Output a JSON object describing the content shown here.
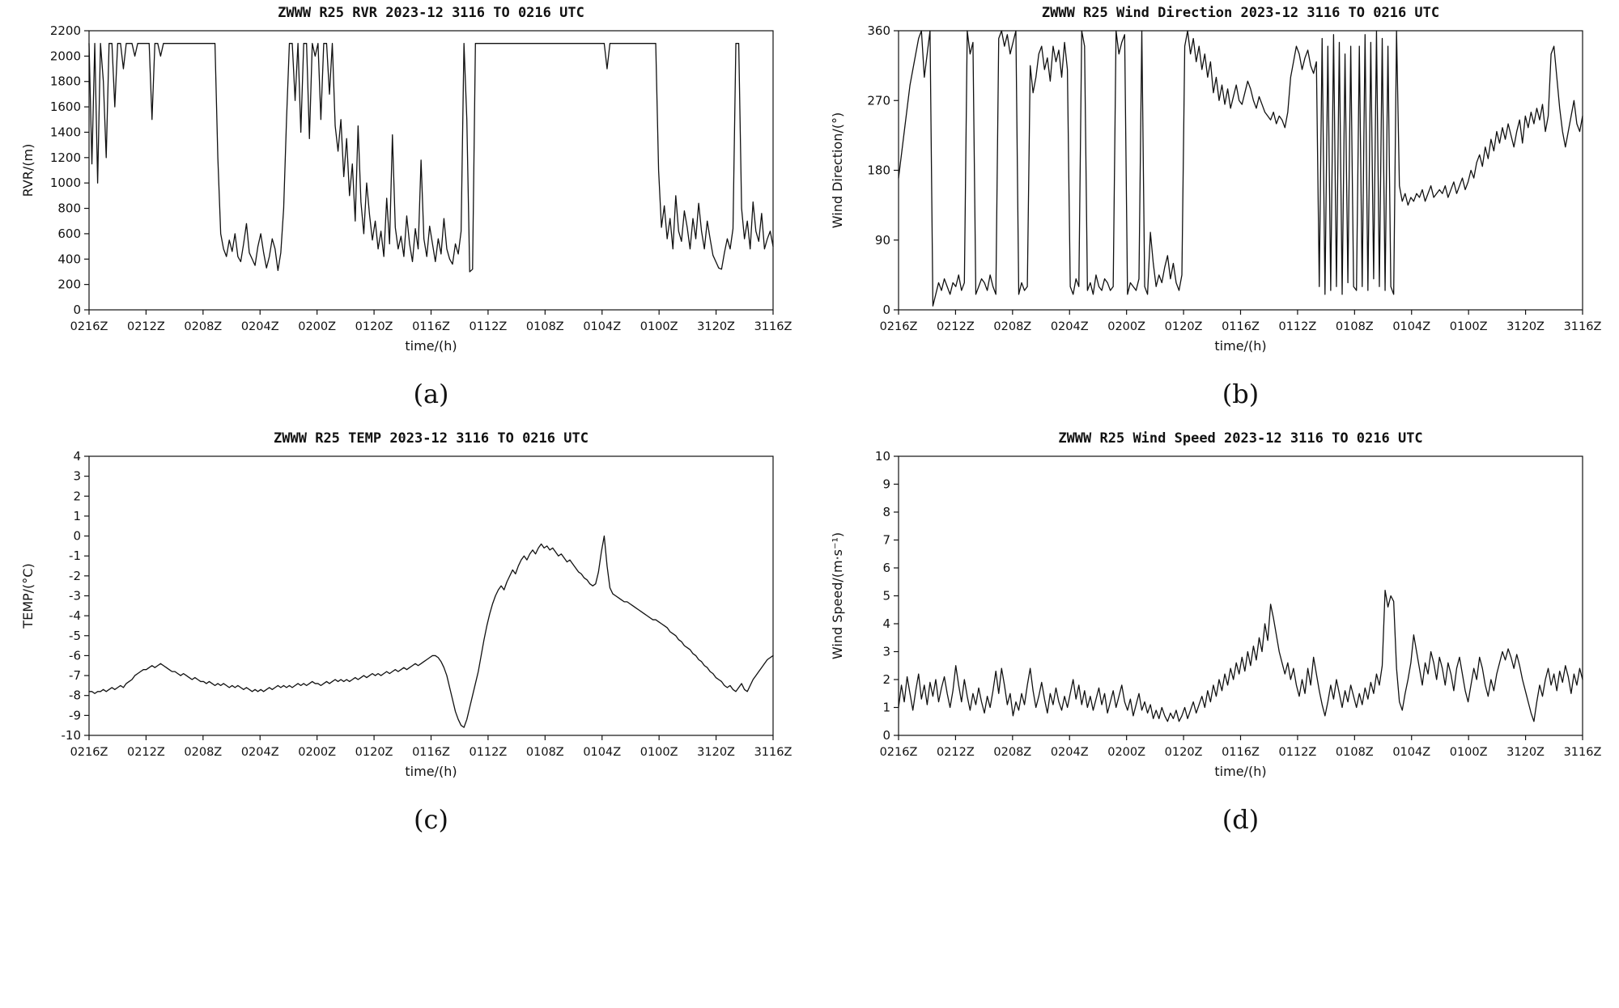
{
  "chart_data": [
    {
      "type": "line",
      "caption": "(a)",
      "title": "ZWWW R25 RVR 2023-12 3116 TO 0216 UTC",
      "xlabel": "time/(h)",
      "ylabel": "RVR/(m)",
      "ylim": [
        0,
        2200
      ],
      "yticks": [
        0,
        200,
        400,
        600,
        800,
        1000,
        1200,
        1400,
        1600,
        1800,
        2000,
        2200
      ],
      "xticklabels": [
        "0216Z",
        "0212Z",
        "0208Z",
        "0204Z",
        "0200Z",
        "0120Z",
        "0116Z",
        "0112Z",
        "0108Z",
        "0104Z",
        "0100Z",
        "3120Z",
        "3116Z"
      ],
      "line_color": "#111111",
      "grid": false,
      "values": [
        2100,
        1150,
        2100,
        1000,
        2100,
        1800,
        1200,
        2100,
        2100,
        1600,
        2100,
        2100,
        1900,
        2100,
        2100,
        2100,
        2000,
        2100,
        2100,
        2100,
        2100,
        2100,
        1500,
        2100,
        2100,
        2000,
        2100,
        2100,
        2100,
        2100,
        2100,
        2100,
        2100,
        2100,
        2100,
        2100,
        2100,
        2100,
        2100,
        2100,
        2100,
        2100,
        2100,
        2100,
        2100,
        1200,
        600,
        480,
        420,
        550,
        460,
        600,
        420,
        380,
        520,
        680,
        450,
        400,
        350,
        500,
        600,
        450,
        330,
        420,
        560,
        480,
        310,
        450,
        800,
        1500,
        2100,
        2100,
        1650,
        2100,
        1400,
        2100,
        2100,
        1350,
        2100,
        2000,
        2100,
        1500,
        2100,
        2100,
        1700,
        2100,
        1450,
        1250,
        1500,
        1050,
        1350,
        900,
        1150,
        700,
        1450,
        850,
        600,
        1000,
        750,
        550,
        700,
        480,
        620,
        420,
        880,
        520,
        1380,
        650,
        480,
        580,
        420,
        740,
        520,
        380,
        640,
        480,
        1180,
        560,
        420,
        660,
        520,
        380,
        560,
        440,
        720,
        480,
        400,
        360,
        520,
        440,
        620,
        2100,
        1500,
        300,
        320,
        2100,
        2100,
        2100,
        2100,
        2100,
        2100,
        2100,
        2100,
        2100,
        2100,
        2100,
        2100,
        2100,
        2100,
        2100,
        2100,
        2100,
        2100,
        2100,
        2100,
        2100,
        2100,
        2100,
        2100,
        2100,
        2100,
        2100,
        2100,
        2100,
        2100,
        2100,
        2100,
        2100,
        2100,
        2100,
        2100,
        2100,
        2100,
        2100,
        2100,
        2100,
        2100,
        2100,
        2100,
        2100,
        2100,
        1900,
        2100,
        2100,
        2100,
        2100,
        2100,
        2100,
        2100,
        2100,
        2100,
        2100,
        2100,
        2100,
        2100,
        2100,
        2100,
        2100,
        2100,
        1100,
        650,
        820,
        560,
        720,
        480,
        900,
        620,
        540,
        780,
        650,
        480,
        720,
        560,
        840,
        620,
        480,
        700,
        560,
        430,
        380,
        330,
        320,
        450,
        560,
        480,
        640,
        2100,
        2100,
        800,
        560,
        700,
        480,
        850,
        620,
        540,
        760,
        480,
        560,
        620,
        500
      ]
    },
    {
      "type": "line",
      "caption": "(b)",
      "title": "ZWWW R25 Wind Direction 2023-12 3116 TO 0216 UTC",
      "xlabel": "time/(h)",
      "ylabel": "Wind Direction/(°)",
      "ylim": [
        0,
        360
      ],
      "yticks": [
        0,
        90,
        180,
        270,
        360
      ],
      "xticklabels": [
        "0216Z",
        "0212Z",
        "0208Z",
        "0204Z",
        "0200Z",
        "0120Z",
        "0116Z",
        "0112Z",
        "0108Z",
        "0104Z",
        "0100Z",
        "3120Z",
        "3116Z"
      ],
      "line_color": "#111111",
      "grid": false,
      "values": [
        170,
        200,
        230,
        260,
        290,
        310,
        330,
        350,
        360,
        300,
        330,
        360,
        5,
        20,
        35,
        25,
        40,
        30,
        20,
        35,
        30,
        45,
        25,
        35,
        360,
        330,
        345,
        20,
        30,
        40,
        35,
        25,
        45,
        30,
        20,
        350,
        360,
        340,
        355,
        330,
        345,
        360,
        20,
        35,
        25,
        30,
        315,
        280,
        300,
        330,
        340,
        310,
        325,
        295,
        340,
        320,
        335,
        300,
        345,
        310,
        30,
        20,
        40,
        30,
        360,
        340,
        25,
        35,
        20,
        45,
        30,
        25,
        40,
        35,
        25,
        30,
        360,
        330,
        345,
        355,
        20,
        35,
        30,
        25,
        40,
        360,
        30,
        20,
        100,
        60,
        30,
        45,
        35,
        55,
        70,
        40,
        60,
        35,
        25,
        45,
        340,
        360,
        330,
        350,
        320,
        340,
        310,
        330,
        300,
        320,
        280,
        300,
        270,
        290,
        265,
        285,
        260,
        275,
        290,
        270,
        265,
        280,
        295,
        285,
        270,
        260,
        275,
        265,
        255,
        250,
        245,
        255,
        240,
        250,
        245,
        235,
        255,
        300,
        320,
        340,
        330,
        310,
        325,
        335,
        315,
        305,
        320,
        30,
        350,
        20,
        340,
        25,
        355,
        30,
        345,
        20,
        330,
        35,
        340,
        30,
        25,
        340,
        30,
        355,
        25,
        345,
        40,
        360,
        30,
        350,
        25,
        340,
        30,
        20,
        360,
        160,
        140,
        150,
        135,
        145,
        140,
        150,
        145,
        155,
        140,
        150,
        160,
        145,
        150,
        155,
        150,
        160,
        145,
        155,
        165,
        150,
        160,
        170,
        155,
        165,
        180,
        170,
        190,
        200,
        185,
        210,
        195,
        220,
        205,
        230,
        215,
        235,
        220,
        240,
        225,
        210,
        230,
        245,
        215,
        250,
        235,
        255,
        240,
        260,
        245,
        265,
        230,
        250,
        330,
        340,
        300,
        260,
        230,
        210,
        230,
        250,
        270,
        240,
        230,
        250
      ]
    },
    {
      "type": "line",
      "caption": "(c)",
      "title": "ZWWW R25 TEMP 2023-12 3116 TO 0216 UTC",
      "xlabel": "time/(h)",
      "ylabel": "TEMP/(°C)",
      "ylim": [
        -10,
        4
      ],
      "yticks": [
        -10,
        -9,
        -8,
        -7,
        -6,
        -5,
        -4,
        -3,
        -2,
        -1,
        0,
        1,
        2,
        3,
        4
      ],
      "xticklabels": [
        "0216Z",
        "0212Z",
        "0208Z",
        "0204Z",
        "0200Z",
        "0120Z",
        "0116Z",
        "0112Z",
        "0108Z",
        "0104Z",
        "0100Z",
        "3120Z",
        "3116Z"
      ],
      "line_color": "#111111",
      "grid": false,
      "values": [
        -7.8,
        -7.8,
        -7.9,
        -7.8,
        -7.8,
        -7.7,
        -7.8,
        -7.7,
        -7.6,
        -7.7,
        -7.6,
        -7.5,
        -7.6,
        -7.4,
        -7.3,
        -7.2,
        -7.0,
        -6.9,
        -6.8,
        -6.7,
        -6.7,
        -6.6,
        -6.5,
        -6.6,
        -6.5,
        -6.4,
        -6.5,
        -6.6,
        -6.7,
        -6.8,
        -6.8,
        -6.9,
        -7.0,
        -6.9,
        -7.0,
        -7.1,
        -7.2,
        -7.1,
        -7.2,
        -7.3,
        -7.3,
        -7.4,
        -7.3,
        -7.4,
        -7.5,
        -7.4,
        -7.5,
        -7.4,
        -7.5,
        -7.6,
        -7.5,
        -7.6,
        -7.5,
        -7.6,
        -7.7,
        -7.6,
        -7.7,
        -7.8,
        -7.7,
        -7.8,
        -7.7,
        -7.8,
        -7.7,
        -7.6,
        -7.7,
        -7.6,
        -7.5,
        -7.6,
        -7.5,
        -7.6,
        -7.5,
        -7.6,
        -7.5,
        -7.4,
        -7.5,
        -7.4,
        -7.5,
        -7.4,
        -7.3,
        -7.4,
        -7.4,
        -7.5,
        -7.4,
        -7.3,
        -7.4,
        -7.3,
        -7.2,
        -7.3,
        -7.2,
        -7.3,
        -7.2,
        -7.3,
        -7.2,
        -7.1,
        -7.2,
        -7.1,
        -7.0,
        -7.1,
        -7.0,
        -6.9,
        -7.0,
        -6.9,
        -7.0,
        -6.9,
        -6.8,
        -6.9,
        -6.8,
        -6.7,
        -6.8,
        -6.7,
        -6.6,
        -6.7,
        -6.6,
        -6.5,
        -6.4,
        -6.5,
        -6.4,
        -6.3,
        -6.2,
        -6.1,
        -6.0,
        -6.0,
        -6.1,
        -6.3,
        -6.6,
        -7.0,
        -7.6,
        -8.2,
        -8.8,
        -9.2,
        -9.5,
        -9.6,
        -9.2,
        -8.6,
        -8.0,
        -7.4,
        -6.8,
        -6.0,
        -5.2,
        -4.5,
        -3.9,
        -3.4,
        -3.0,
        -2.7,
        -2.5,
        -2.7,
        -2.3,
        -2.0,
        -1.7,
        -1.9,
        -1.5,
        -1.2,
        -1.0,
        -1.2,
        -0.9,
        -0.7,
        -0.9,
        -0.6,
        -0.4,
        -0.6,
        -0.5,
        -0.7,
        -0.6,
        -0.8,
        -1.0,
        -0.9,
        -1.1,
        -1.3,
        -1.2,
        -1.4,
        -1.6,
        -1.8,
        -1.9,
        -2.1,
        -2.2,
        -2.4,
        -2.5,
        -2.4,
        -1.8,
        -0.8,
        0.0,
        -1.5,
        -2.6,
        -2.9,
        -3.0,
        -3.1,
        -3.2,
        -3.3,
        -3.3,
        -3.4,
        -3.5,
        -3.6,
        -3.7,
        -3.8,
        -3.9,
        -4.0,
        -4.1,
        -4.2,
        -4.2,
        -4.3,
        -4.4,
        -4.5,
        -4.6,
        -4.8,
        -4.9,
        -5.0,
        -5.2,
        -5.3,
        -5.5,
        -5.6,
        -5.7,
        -5.9,
        -6.0,
        -6.2,
        -6.3,
        -6.5,
        -6.6,
        -6.8,
        -6.9,
        -7.1,
        -7.2,
        -7.3,
        -7.5,
        -7.6,
        -7.5,
        -7.7,
        -7.8,
        -7.6,
        -7.4,
        -7.7,
        -7.8,
        -7.5,
        -7.2,
        -7.0,
        -6.8,
        -6.6,
        -6.4,
        -6.2,
        -6.1,
        -6.0
      ]
    },
    {
      "type": "line",
      "caption": "(d)",
      "title": "ZWWW R25 Wind Speed 2023-12 3116 TO 0216 UTC",
      "xlabel": "time/(h)",
      "ylabel": "Wind Speed/(m·s⁻¹)",
      "ylim": [
        0,
        10
      ],
      "yticks": [
        0,
        1,
        2,
        3,
        4,
        5,
        6,
        7,
        8,
        9,
        10
      ],
      "xticklabels": [
        "0216Z",
        "0212Z",
        "0208Z",
        "0204Z",
        "0200Z",
        "0120Z",
        "0116Z",
        "0112Z",
        "0108Z",
        "0104Z",
        "0100Z",
        "3120Z",
        "3116Z"
      ],
      "line_color": "#111111",
      "grid": false,
      "values": [
        1.0,
        1.8,
        1.2,
        2.1,
        1.5,
        0.9,
        1.6,
        2.2,
        1.3,
        1.8,
        1.1,
        1.9,
        1.4,
        2.0,
        1.2,
        1.7,
        2.1,
        1.5,
        1.0,
        1.6,
        2.5,
        1.8,
        1.2,
        2.0,
        1.4,
        0.9,
        1.5,
        1.1,
        1.7,
        1.2,
        0.8,
        1.4,
        1.0,
        1.6,
        2.3,
        1.5,
        2.4,
        1.8,
        1.1,
        1.5,
        0.7,
        1.2,
        0.9,
        1.5,
        1.1,
        1.8,
        2.4,
        1.6,
        1.0,
        1.4,
        1.9,
        1.3,
        0.8,
        1.5,
        1.1,
        1.7,
        1.2,
        0.9,
        1.4,
        1.0,
        1.5,
        2.0,
        1.3,
        1.8,
        1.1,
        1.6,
        1.0,
        1.4,
        0.9,
        1.3,
        1.7,
        1.1,
        1.5,
        0.8,
        1.2,
        1.6,
        1.0,
        1.4,
        1.8,
        1.2,
        0.9,
        1.3,
        0.7,
        1.1,
        1.5,
        0.9,
        1.2,
        0.8,
        1.1,
        0.6,
        0.9,
        0.6,
        1.0,
        0.7,
        0.5,
        0.8,
        0.6,
        0.9,
        0.5,
        0.7,
        1.0,
        0.6,
        0.9,
        1.2,
        0.8,
        1.1,
        1.4,
        1.0,
        1.6,
        1.2,
        1.8,
        1.4,
        2.0,
        1.6,
        2.2,
        1.8,
        2.4,
        2.0,
        2.6,
        2.2,
        2.8,
        2.3,
        3.0,
        2.5,
        3.2,
        2.7,
        3.5,
        3.0,
        4.0,
        3.4,
        4.7,
        4.2,
        3.6,
        3.0,
        2.6,
        2.2,
        2.6,
        2.0,
        2.4,
        1.8,
        1.4,
        2.0,
        1.5,
        2.4,
        1.8,
        2.8,
        2.2,
        1.6,
        1.1,
        0.7,
        1.2,
        1.8,
        1.3,
        2.0,
        1.5,
        1.0,
        1.6,
        1.2,
        1.8,
        1.4,
        1.0,
        1.5,
        1.1,
        1.7,
        1.3,
        1.9,
        1.5,
        2.2,
        1.8,
        2.5,
        5.2,
        4.6,
        5.0,
        4.8,
        2.4,
        1.2,
        0.9,
        1.5,
        2.0,
        2.6,
        3.6,
        3.0,
        2.4,
        1.8,
        2.6,
        2.2,
        3.0,
        2.6,
        2.0,
        2.8,
        2.4,
        1.8,
        2.6,
        2.2,
        1.6,
        2.4,
        2.8,
        2.2,
        1.6,
        1.2,
        1.8,
        2.4,
        2.0,
        2.8,
        2.4,
        1.8,
        1.4,
        2.0,
        1.6,
        2.2,
        2.6,
        3.0,
        2.7,
        3.1,
        2.8,
        2.4,
        2.9,
        2.5,
        2.0,
        1.6,
        1.2,
        0.8,
        0.5,
        1.2,
        1.8,
        1.4,
        2.0,
        2.4,
        1.8,
        2.2,
        1.6,
        2.3,
        1.9,
        2.5,
        2.1,
        1.5,
        2.2,
        1.8,
        2.4,
        2.0
      ]
    }
  ]
}
